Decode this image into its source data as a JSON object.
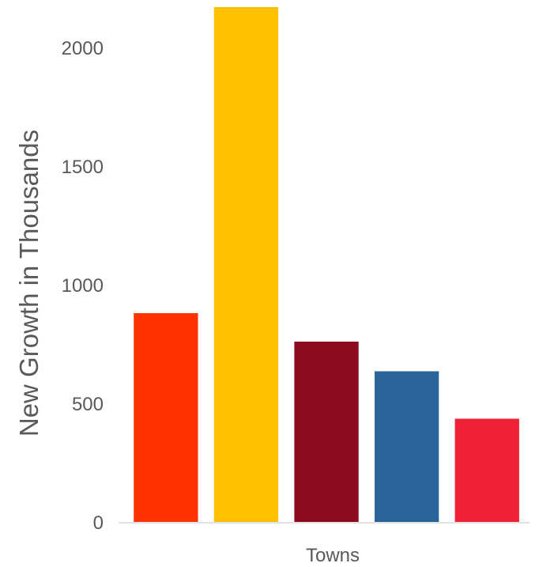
{
  "chart_data": {
    "type": "bar",
    "title": "",
    "xlabel": "Towns",
    "ylabel": "New Growth in Thousands",
    "ylim": [
      0,
      2170
    ],
    "yticks": [
      0,
      500,
      1000,
      1500,
      2000
    ],
    "categories": [
      "",
      "",
      "",
      "",
      ""
    ],
    "values": [
      880,
      2170,
      760,
      635,
      435
    ],
    "colors": [
      "#FF3300",
      "#FFC000",
      "#8B0A1E",
      "#2A6499",
      "#EE2136"
    ],
    "grid": false,
    "legend": "none"
  }
}
